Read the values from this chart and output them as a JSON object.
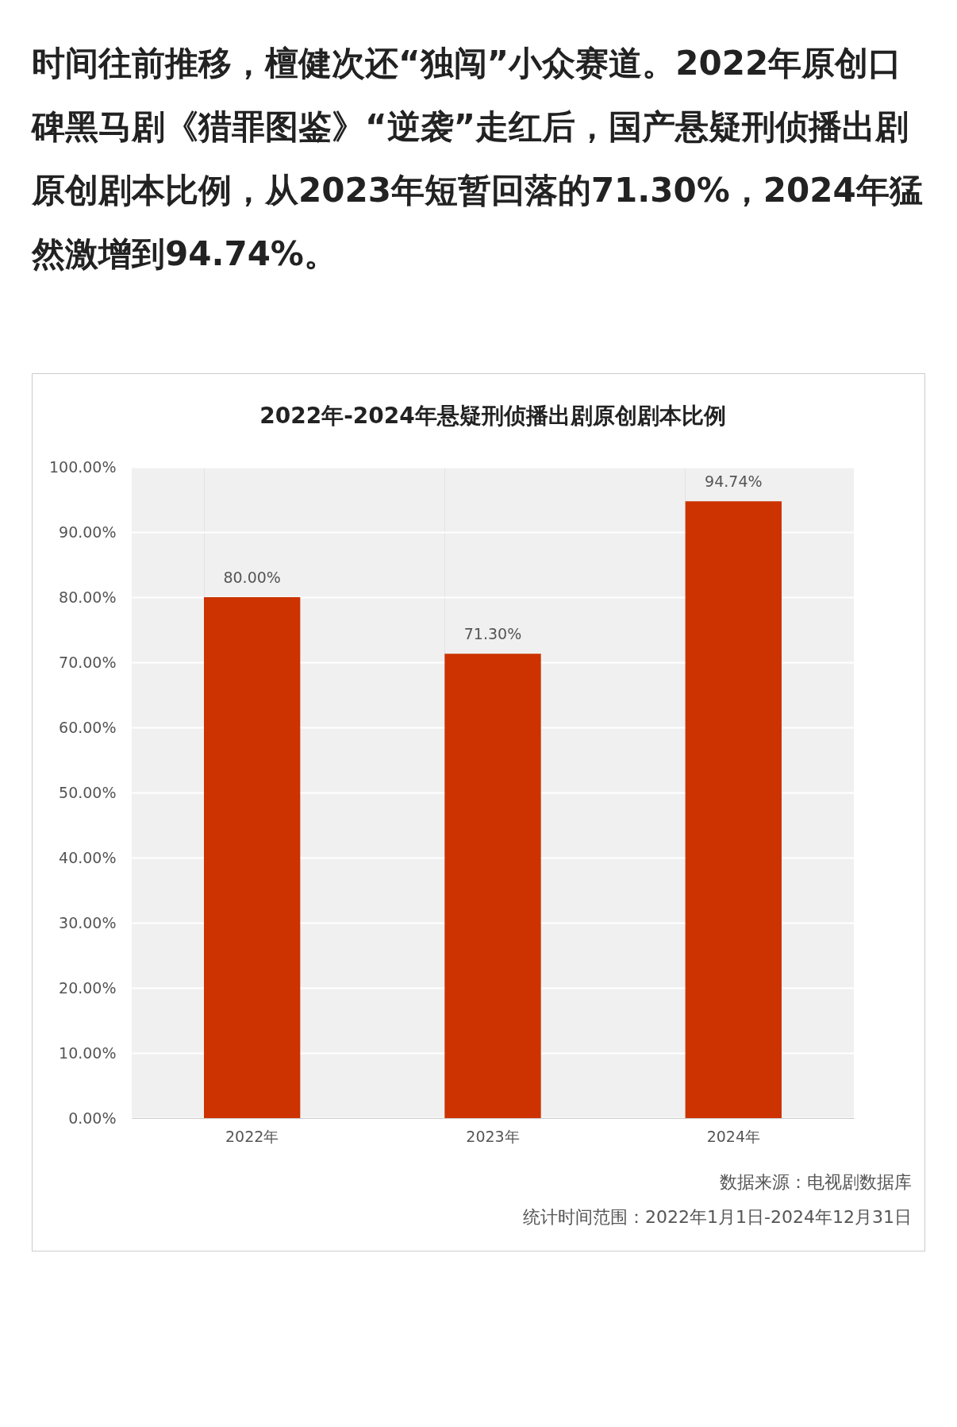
{
  "chart_data": {
    "type": "bar",
    "title": "2022年-2024年悬疑刑侦播出剧原创剧本比例",
    "categories": [
      "2022年",
      "2023年",
      "2024年"
    ],
    "values": [
      80,
      71.3,
      94.74
    ],
    "value_labels": [
      "80.00%",
      "71.30%",
      "94.74%"
    ],
    "color": "#cc3300",
    "ylim": [
      0,
      100
    ],
    "yticks": [
      {
        "value": 0,
        "label": "0.00%"
      },
      {
        "value": 10,
        "label": "10.00%"
      },
      {
        "value": 20,
        "label": "20.00%"
      },
      {
        "value": 30,
        "label": "30.00%"
      },
      {
        "value": 40,
        "label": "40.00%"
      },
      {
        "value": 50,
        "label": "50.00%"
      },
      {
        "value": 60,
        "label": "60.00%"
      },
      {
        "value": 70,
        "label": "70.00%"
      },
      {
        "value": 80,
        "label": "80.00%"
      },
      {
        "value": 90,
        "label": "90.00%"
      },
      {
        "value": 100,
        "label": "100.00%"
      }
    ],
    "grid": true,
    "annotations": [
      "时间往前推移，檀健次还“独闯”小众赛道。2022年原创口碑黑马剧《猎罪图鉴》“逆袭”走红后，国产悬疑刑侦播出剧原创剧本比例，从2023年短暂回落的71.30%，2024年猛然激增到94.74%。",
      "数据来源：电视剧数据库",
      "统计时间范围：2022年1月1日-2024年12月31日"
    ]
  }
}
